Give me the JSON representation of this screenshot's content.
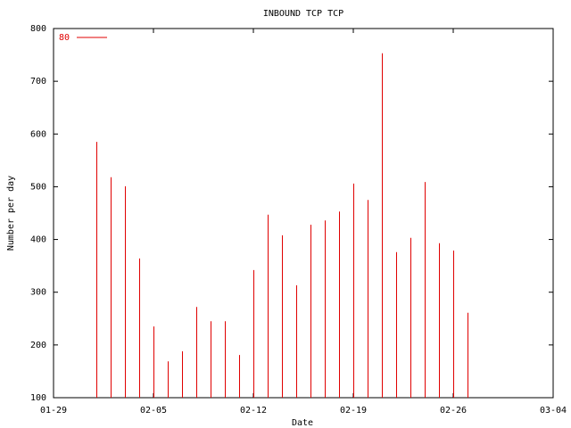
{
  "chart_data": {
    "type": "impulse",
    "title": "INBOUND TCP TCP",
    "xlabel": "Date",
    "ylabel": "Number per day",
    "x": [
      "02-01",
      "02-02",
      "02-03",
      "02-04",
      "02-05",
      "02-06",
      "02-07",
      "02-08",
      "02-09",
      "02-10",
      "02-11",
      "02-12",
      "02-13",
      "02-14",
      "02-15",
      "02-16",
      "02-17",
      "02-18",
      "02-19",
      "02-20",
      "02-21",
      "02-22",
      "02-23",
      "02-24",
      "02-25",
      "02-26",
      "02-27"
    ],
    "series": [
      {
        "name": "80",
        "color": "#e00000",
        "values": [
          585,
          518,
          501,
          364,
          235,
          169,
          188,
          272,
          245,
          245,
          181,
          342,
          447,
          408,
          313,
          428,
          436,
          453,
          506,
          475,
          753,
          376,
          403,
          509,
          393,
          379,
          261
        ]
      }
    ],
    "xlim": [
      "01-29",
      "03-04"
    ],
    "xticks": [
      "01-29",
      "02-05",
      "02-12",
      "02-19",
      "02-26",
      "03-04"
    ],
    "ylim": [
      100,
      800
    ],
    "yticks": [
      100,
      200,
      300,
      400,
      500,
      600,
      700,
      800
    ],
    "legend": "top-left"
  }
}
